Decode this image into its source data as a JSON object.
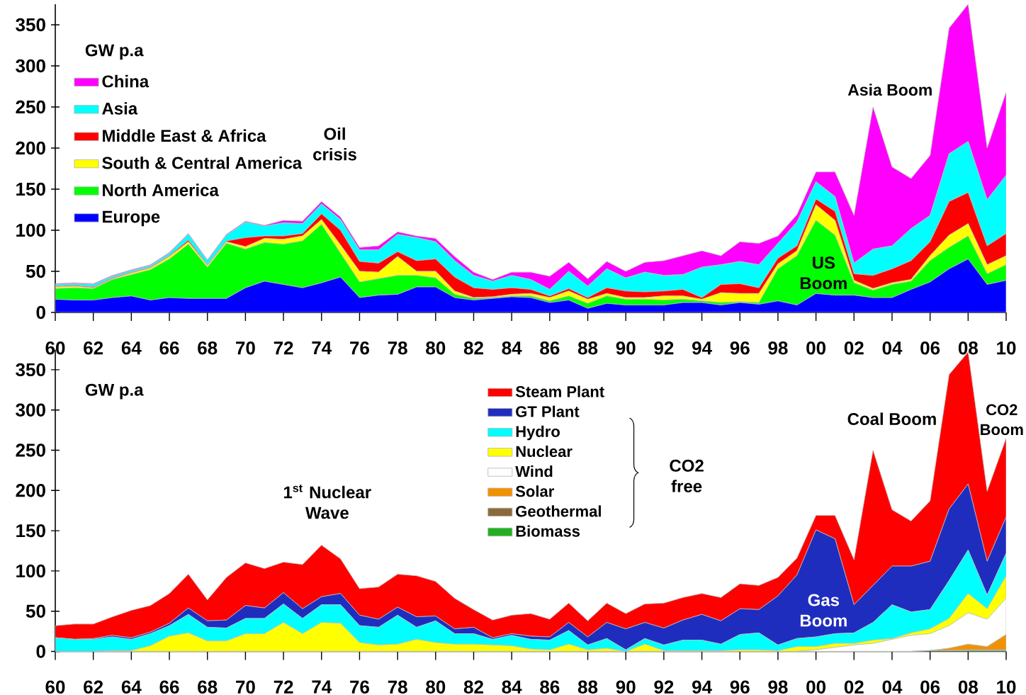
{
  "chart_data": [
    {
      "type": "area",
      "stacked": true,
      "ylabel": "GW p.a",
      "legend": "top left",
      "x": [
        1960,
        1961,
        1962,
        1963,
        1964,
        1965,
        1966,
        1967,
        1968,
        1969,
        1970,
        1971,
        1972,
        1973,
        1974,
        1975,
        1976,
        1977,
        1978,
        1979,
        1980,
        1981,
        1982,
        1983,
        1984,
        1985,
        1986,
        1987,
        1988,
        1989,
        1990,
        1991,
        1992,
        1993,
        1994,
        1995,
        1996,
        1997,
        1998,
        1999,
        2000,
        2001,
        2002,
        2003,
        2004,
        2005,
        2006,
        2007,
        2008,
        2009,
        2010
      ],
      "xlim": [
        1960,
        2010
      ],
      "xticks": [
        {
          "value": 1960,
          "label": "60"
        },
        {
          "value": 1962,
          "label": "62"
        },
        {
          "value": 1964,
          "label": "64"
        },
        {
          "value": 1966,
          "label": "66"
        },
        {
          "value": 1968,
          "label": "68"
        },
        {
          "value": 1970,
          "label": "70"
        },
        {
          "value": 1972,
          "label": "72"
        },
        {
          "value": 1974,
          "label": "74"
        },
        {
          "value": 1976,
          "label": "76"
        },
        {
          "value": 1978,
          "label": "78"
        },
        {
          "value": 1980,
          "label": "80"
        },
        {
          "value": 1982,
          "label": "82"
        },
        {
          "value": 1984,
          "label": "84"
        },
        {
          "value": 1986,
          "label": "86"
        },
        {
          "value": 1988,
          "label": "88"
        },
        {
          "value": 1990,
          "label": "90"
        },
        {
          "value": 1992,
          "label": "92"
        },
        {
          "value": 1994,
          "label": "94"
        },
        {
          "value": 1996,
          "label": "96"
        },
        {
          "value": 1998,
          "label": "98"
        },
        {
          "value": 2000,
          "label": "00"
        },
        {
          "value": 2002,
          "label": "02"
        },
        {
          "value": 2004,
          "label": "04"
        },
        {
          "value": 2006,
          "label": "06"
        },
        {
          "value": 2008,
          "label": "08"
        },
        {
          "value": 2010,
          "label": "10"
        }
      ],
      "ylim": [
        0,
        375
      ],
      "yticks": [
        0,
        50,
        100,
        150,
        200,
        250,
        300,
        350
      ],
      "series": [
        {
          "name": "Europe",
          "color": "#0000ff",
          "values": [
            16,
            15,
            15,
            18,
            20,
            15,
            18,
            17,
            17,
            17,
            30,
            38,
            34,
            30,
            36,
            43,
            18,
            21,
            22,
            31,
            31,
            18,
            15,
            17,
            19,
            18,
            12,
            15,
            5,
            11,
            9,
            9,
            9,
            12,
            12,
            9,
            12,
            10,
            14,
            9,
            23,
            21,
            21,
            18,
            18,
            28,
            37,
            53,
            65,
            34,
            39
          ]
        },
        {
          "name": "North America",
          "color": "#00ff00",
          "values": [
            13,
            15,
            14,
            22,
            26,
            37,
            47,
            66,
            38,
            67,
            47,
            47,
            49,
            57,
            71,
            29,
            19,
            20,
            23,
            14,
            11,
            4,
            2,
            1,
            1,
            2,
            2,
            5,
            6,
            9,
            7,
            7,
            6,
            4,
            2,
            3,
            1,
            2,
            39,
            60,
            89,
            73,
            15,
            9,
            16,
            10,
            26,
            26,
            28,
            13,
            19
          ]
        },
        {
          "name": "South & Central America",
          "color": "#ffff00",
          "values": [
            2,
            2,
            1,
            1,
            2,
            2,
            3,
            3,
            2,
            2,
            3,
            5,
            6,
            6,
            6,
            10,
            13,
            8,
            23,
            5,
            8,
            4,
            1,
            1,
            2,
            3,
            4,
            6,
            5,
            3,
            2,
            2,
            5,
            4,
            2,
            12,
            10,
            11,
            6,
            6,
            19,
            18,
            3,
            2,
            2,
            2,
            6,
            15,
            15,
            11,
            11
          ]
        },
        {
          "name": "Middle East & Africa",
          "color": "#ff0000",
          "values": [
            1,
            1,
            1,
            1,
            1,
            1,
            1,
            2,
            1,
            1,
            11,
            3,
            4,
            3,
            7,
            18,
            12,
            11,
            6,
            13,
            15,
            17,
            12,
            9,
            8,
            5,
            2,
            3,
            2,
            7,
            8,
            7,
            6,
            8,
            2,
            10,
            12,
            7,
            7,
            6,
            7,
            11,
            8,
            16,
            17,
            23,
            17,
            41,
            38,
            23,
            27
          ]
        },
        {
          "name": "Asia",
          "color": "#00ffff",
          "values": [
            2,
            2,
            3,
            2,
            2,
            2,
            3,
            7,
            5,
            7,
            19,
            12,
            16,
            12,
            12,
            13,
            14,
            16,
            21,
            28,
            21,
            20,
            15,
            10,
            15,
            12,
            8,
            21,
            14,
            23,
            16,
            24,
            19,
            18,
            37,
            24,
            27,
            28,
            18,
            29,
            21,
            18,
            13,
            32,
            28,
            39,
            32,
            58,
            62,
            56,
            71
          ]
        },
        {
          "name": "China",
          "color": "#ff00ff",
          "values": [
            1,
            1,
            1,
            1,
            1,
            1,
            1,
            1,
            1,
            1,
            1,
            1,
            3,
            3,
            3,
            3,
            3,
            5,
            3,
            2,
            4,
            5,
            4,
            2,
            4,
            9,
            16,
            11,
            9,
            9,
            8,
            12,
            18,
            23,
            20,
            11,
            24,
            26,
            9,
            9,
            12,
            30,
            58,
            173,
            96,
            61,
            73,
            153,
            167,
            63,
            101
          ]
        }
      ],
      "annotations": [
        "Oil crisis",
        "US Boom",
        "Asia Boom"
      ]
    },
    {
      "type": "area",
      "stacked": true,
      "ylabel": "GW p.a",
      "legend": "top",
      "x": [
        1960,
        1961,
        1962,
        1963,
        1964,
        1965,
        1966,
        1967,
        1968,
        1969,
        1970,
        1971,
        1972,
        1973,
        1974,
        1975,
        1976,
        1977,
        1978,
        1979,
        1980,
        1981,
        1982,
        1983,
        1984,
        1985,
        1986,
        1987,
        1988,
        1989,
        1990,
        1991,
        1992,
        1993,
        1994,
        1995,
        1996,
        1997,
        1998,
        1999,
        2000,
        2001,
        2002,
        2003,
        2004,
        2005,
        2006,
        2007,
        2008,
        2009,
        2010
      ],
      "xlim": [
        1960,
        2010
      ],
      "xticks": [
        {
          "value": 1960,
          "label": "60"
        },
        {
          "value": 1962,
          "label": "62"
        },
        {
          "value": 1964,
          "label": "64"
        },
        {
          "value": 1966,
          "label": "66"
        },
        {
          "value": 1968,
          "label": "68"
        },
        {
          "value": 1970,
          "label": "70"
        },
        {
          "value": 1972,
          "label": "72"
        },
        {
          "value": 1974,
          "label": "74"
        },
        {
          "value": 1976,
          "label": "76"
        },
        {
          "value": 1978,
          "label": "78"
        },
        {
          "value": 1980,
          "label": "80"
        },
        {
          "value": 1982,
          "label": "82"
        },
        {
          "value": 1984,
          "label": "84"
        },
        {
          "value": 1986,
          "label": "86"
        },
        {
          "value": 1988,
          "label": "88"
        },
        {
          "value": 1990,
          "label": "90"
        },
        {
          "value": 1992,
          "label": "92"
        },
        {
          "value": 1994,
          "label": "94"
        },
        {
          "value": 1996,
          "label": "96"
        },
        {
          "value": 1998,
          "label": "98"
        },
        {
          "value": 2000,
          "label": "00"
        },
        {
          "value": 2002,
          "label": "02"
        },
        {
          "value": 2004,
          "label": "04"
        },
        {
          "value": 2006,
          "label": "06"
        },
        {
          "value": 2008,
          "label": "08"
        },
        {
          "value": 2010,
          "label": "10"
        }
      ],
      "ylim": [
        0,
        375
      ],
      "yticks": [
        0,
        50,
        100,
        150,
        200,
        250,
        300,
        350
      ],
      "series": [
        {
          "name": "Biomass",
          "color": "#22b022",
          "values": [
            0,
            0,
            0,
            0,
            0,
            0,
            0,
            0,
            0,
            0,
            0,
            0,
            0,
            0,
            0,
            0,
            0,
            0,
            0,
            0,
            0,
            0,
            0,
            0,
            0,
            0,
            0,
            0,
            0,
            0,
            0,
            0,
            0,
            0,
            0,
            0,
            0,
            0,
            0,
            0,
            0,
            0,
            0,
            0,
            0,
            0,
            1,
            1,
            1,
            1,
            1
          ]
        },
        {
          "name": "Geothermal",
          "color": "#8b6a3a",
          "values": [
            0,
            0,
            0,
            0,
            0,
            0,
            0,
            0,
            0,
            0,
            0,
            0,
            0,
            0,
            0,
            0,
            0,
            0,
            0,
            0,
            0,
            0,
            0,
            0,
            0,
            0,
            0,
            0,
            0,
            0,
            0,
            0,
            0,
            0,
            0,
            0,
            0,
            0,
            0,
            0,
            0,
            0,
            0,
            0,
            0,
            0,
            0,
            0,
            1,
            1,
            1
          ]
        },
        {
          "name": "Solar",
          "color": "#f29100",
          "values": [
            0,
            0,
            0,
            0,
            0,
            0,
            0,
            0,
            0,
            0,
            0,
            0,
            0,
            0,
            0,
            0,
            0,
            0,
            0,
            0,
            0,
            0,
            0,
            0,
            0,
            0,
            0,
            0,
            0,
            0,
            0,
            0,
            0,
            0,
            0,
            0,
            0,
            0,
            0,
            0,
            0,
            0,
            0,
            0,
            0,
            0,
            0,
            3,
            7,
            4,
            19
          ]
        },
        {
          "name": "Wind",
          "color": "#ffffff",
          "values": [
            0,
            0,
            0,
            0,
            0,
            0,
            0,
            0,
            0,
            0,
            0,
            0,
            0,
            0,
            0,
            0,
            0,
            0,
            0,
            0,
            0,
            0,
            0,
            0,
            0,
            0,
            0,
            0,
            0,
            0,
            0,
            0,
            0,
            0,
            0,
            0,
            0,
            0,
            0,
            0,
            2,
            5,
            8,
            10,
            15,
            20,
            21,
            28,
            39,
            34,
            45
          ]
        },
        {
          "name": "Nuclear",
          "color": "#ffff00",
          "values": [
            0,
            0,
            0,
            1,
            1,
            7,
            19,
            23,
            13,
            13,
            22,
            22,
            36,
            22,
            36,
            35,
            11,
            8,
            9,
            15,
            11,
            9,
            9,
            8,
            7,
            3,
            2,
            9,
            2,
            4,
            0,
            9,
            1,
            1,
            1,
            1,
            2,
            2,
            1,
            6,
            4,
            5,
            2,
            4,
            1,
            3,
            6,
            9,
            24,
            13,
            28
          ]
        },
        {
          "name": "Hydro",
          "color": "#00ffff",
          "values": [
            17,
            15,
            15,
            17,
            14,
            15,
            13,
            23,
            17,
            16,
            19,
            19,
            23,
            19,
            22,
            23,
            21,
            22,
            36,
            15,
            27,
            13,
            13,
            7,
            13,
            12,
            12,
            17,
            6,
            12,
            2,
            7,
            7,
            13,
            13,
            8,
            19,
            21,
            7,
            10,
            12,
            12,
            13,
            22,
            42,
            26,
            24,
            47,
            54,
            17,
            28
          ]
        },
        {
          "name": "GT Plant",
          "color": "#1f2dbf",
          "values": [
            0,
            0,
            1,
            2,
            2,
            2,
            3,
            8,
            8,
            10,
            16,
            13,
            14,
            12,
            10,
            14,
            13,
            10,
            10,
            13,
            6,
            6,
            8,
            2,
            2,
            4,
            4,
            10,
            10,
            20,
            26,
            20,
            21,
            25,
            32,
            29,
            32,
            29,
            61,
            79,
            133,
            118,
            35,
            46,
            48,
            57,
            60,
            89,
            82,
            42,
            45
          ]
        },
        {
          "name": "Steam Plant",
          "color": "#ff0000",
          "values": [
            15,
            19,
            18,
            23,
            34,
            33,
            37,
            42,
            26,
            53,
            53,
            49,
            38,
            55,
            64,
            43,
            33,
            40,
            41,
            51,
            43,
            38,
            22,
            22,
            23,
            28,
            22,
            24,
            20,
            24,
            19,
            23,
            31,
            28,
            26,
            29,
            31,
            30,
            23,
            21,
            18,
            29,
            56,
            168,
            70,
            56,
            75,
            167,
            164,
            87,
            98
          ]
        }
      ],
      "annotations": [
        "1$^{st}$ Nuclear Wave",
        "Coal Boom",
        "CO2 free",
        "Gas Boom",
        "CO2 Boom"
      ]
    }
  ]
}
